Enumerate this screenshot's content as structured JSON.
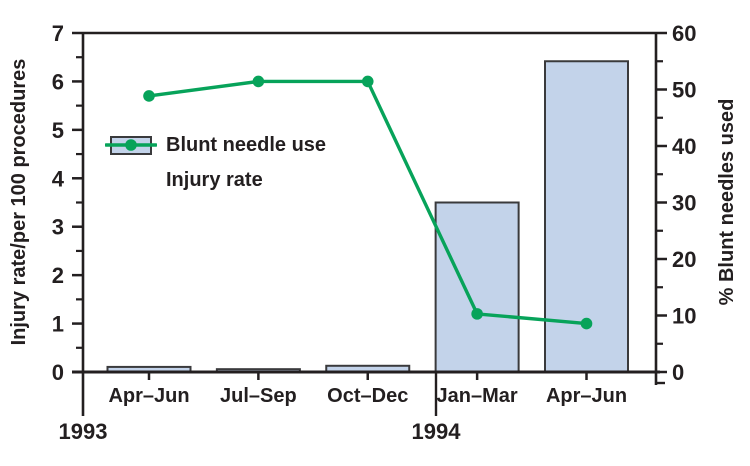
{
  "chart_data": {
    "type": "bar",
    "subtype": "combo-bar-line-dual-axis",
    "categories": [
      "Apr–Jun",
      "Jul–Sep",
      "Oct–Dec",
      "Jan–Mar",
      "Apr–Jun"
    ],
    "series": [
      {
        "name": "Blunt needle use",
        "type": "bar",
        "axis": "right",
        "values": [
          0.9,
          0.5,
          1.1,
          30,
          55
        ]
      },
      {
        "name": "Injury rate",
        "type": "line",
        "axis": "left",
        "values": [
          5.7,
          6.0,
          6.0,
          1.2,
          1.0
        ]
      }
    ],
    "left_axis": {
      "label": "Injury rate/per 100 procedures",
      "min": 0,
      "max": 7,
      "ticks": [
        0,
        1,
        2,
        3,
        4,
        5,
        6,
        7
      ],
      "minor_step": 0.5
    },
    "right_axis": {
      "label": "% Blunt needles used",
      "min": 0,
      "max": 60,
      "ticks": [
        0,
        10,
        20,
        30,
        40,
        50,
        60
      ],
      "minor_step": 5
    },
    "x_groups": [
      {
        "label": "1993",
        "categories": [
          0,
          1,
          2
        ]
      },
      {
        "label": "1994",
        "categories": [
          3,
          4
        ]
      }
    ],
    "legend": {
      "position": "inside-top-left",
      "items": [
        "Blunt needle use",
        "Injury rate"
      ]
    },
    "grid": false,
    "colors": {
      "bar_fill": "#c3d3ea",
      "bar_border": "#3a3a3c",
      "line_green": "#07a35a",
      "text": "#231f20"
    }
  }
}
